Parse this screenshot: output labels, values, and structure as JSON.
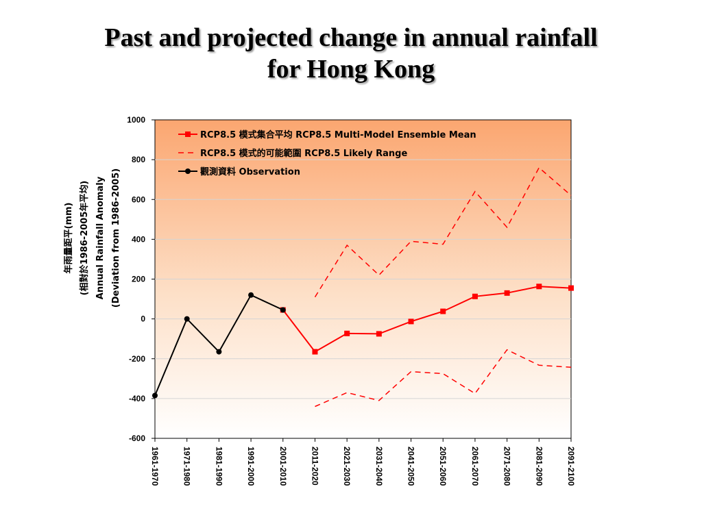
{
  "slide": {
    "title_line1": "Past and projected change in annual rainfall",
    "title_line2": "for Hong Kong"
  },
  "chart_data": {
    "type": "line",
    "title": "Past and projected change in annual rainfall for Hong Kong",
    "ylabel_lines": [
      "年雨量距平(mm)",
      "(相對於1986-2005年平均)",
      "Annual Rainfall Anomaly",
      "(Deviation from 1986-2005)"
    ],
    "xlabel": "",
    "categories": [
      "1961-1970",
      "1971-1980",
      "1981-1990",
      "1991-2000",
      "2001-2010",
      "2011-2020",
      "2021-2030",
      "2031-2040",
      "2041-2050",
      "2051-2060",
      "2061-2070",
      "2071-2080",
      "2081-2090",
      "2091-2100"
    ],
    "ylim": [
      -600,
      1000
    ],
    "yticks": [
      -600,
      -400,
      -200,
      0,
      200,
      400,
      600,
      800,
      1000
    ],
    "grid": true,
    "legend_position": "top-left",
    "series": [
      {
        "name": "RCP8.5 模式集合平均 RCP8.5 Multi-Model Ensemble Mean",
        "style": "solid-square",
        "color": "#ff0000",
        "values": [
          null,
          null,
          null,
          null,
          45,
          -165,
          -73,
          -75,
          -13,
          38,
          113,
          130,
          163,
          155
        ]
      },
      {
        "name": "RCP8.5 模式的可能範圍 RCP8.5 Likely Range",
        "style": "dashed",
        "color": "#ff0000",
        "values_upper": [
          null,
          null,
          null,
          null,
          null,
          110,
          370,
          220,
          390,
          375,
          640,
          460,
          760,
          620
        ],
        "values_lower": [
          null,
          null,
          null,
          null,
          null,
          -440,
          -370,
          -410,
          -265,
          -275,
          -375,
          -155,
          -233,
          -243
        ]
      },
      {
        "name": "觀測資料 Observation",
        "style": "solid-circle",
        "color": "#000000",
        "values": [
          -385,
          0,
          -165,
          120,
          45,
          null,
          null,
          null,
          null,
          null,
          null,
          null,
          null,
          null
        ]
      }
    ]
  }
}
